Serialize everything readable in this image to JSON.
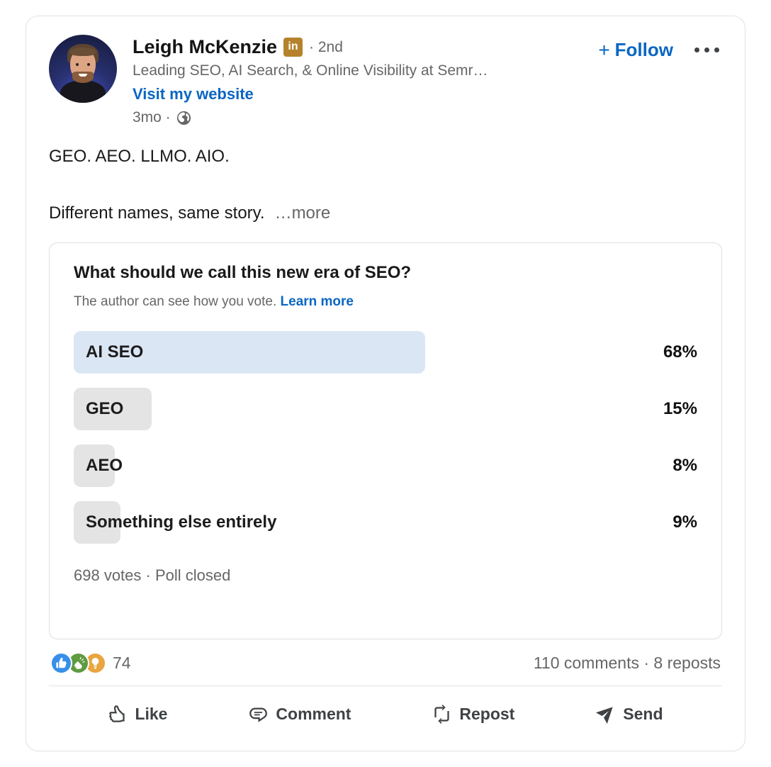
{
  "colors": {
    "linkedin_blue": "#0a66c2",
    "premium_gold": "#b5822b",
    "poll_lead_bar": "#dbe6f5",
    "poll_bar": "#e4e4e5",
    "reaction_like": "#378fe9",
    "reaction_celebrate": "#5f9b41",
    "reaction_insightful": "#e9a53f",
    "secondary_text": "#666666"
  },
  "header": {
    "name": "Leigh McKenzie",
    "premium_badge": "in",
    "degree": "· 2nd",
    "headline": "Leading SEO, AI Search, & Online Visibility at Semr…",
    "website_link": "Visit my website",
    "time": "3mo ·",
    "visibility_icon": "globe-public-icon",
    "follow_plus": "+",
    "follow_label": "Follow",
    "overflow_icon": "ellipsis-menu-icon"
  },
  "post": {
    "line1": "GEO. AEO. LLMO. AIO.",
    "line2": "Different names, same story.",
    "see_more": "…more"
  },
  "poll": {
    "question": "What should we call this new era of SEO?",
    "disclaimer": "The author can see how you vote.",
    "learn_more": "Learn more",
    "options": [
      {
        "label": "AI SEO",
        "percent_label": "68%",
        "value": 68,
        "lead": true
      },
      {
        "label": "GEO",
        "percent_label": "15%",
        "value": 15,
        "lead": false
      },
      {
        "label": "AEO",
        "percent_label": "8%",
        "value": 8,
        "lead": false
      },
      {
        "label": "Something else entirely",
        "percent_label": "9%",
        "value": 9,
        "lead": false
      }
    ],
    "footer": "698 votes · Poll closed"
  },
  "social": {
    "reaction_icons": [
      "like-thumb-icon",
      "celebrate-clap-icon",
      "insightful-bulb-icon"
    ],
    "reactions_count": "74",
    "comments_reposts": "110 comments · 8 reposts"
  },
  "actions": [
    {
      "label": "Like",
      "icon": "thumbs-up-icon"
    },
    {
      "label": "Comment",
      "icon": "comment-bubble-icon"
    },
    {
      "label": "Repost",
      "icon": "repost-arrows-icon"
    },
    {
      "label": "Send",
      "icon": "send-plane-icon"
    }
  ]
}
